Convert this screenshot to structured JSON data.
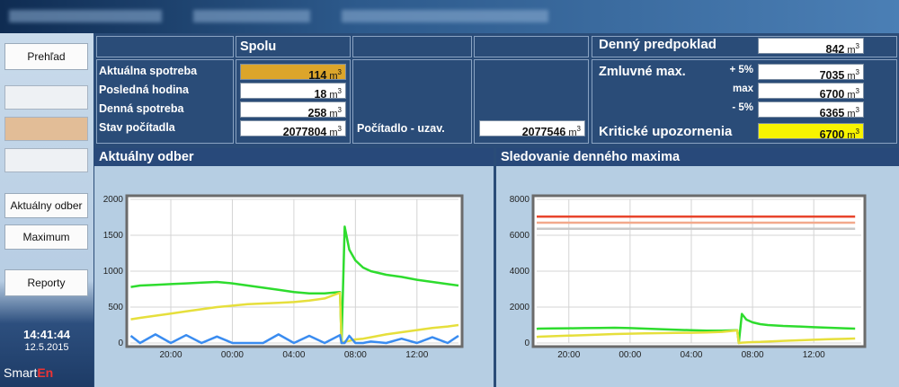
{
  "sidebar": {
    "buttons": [
      "Prehľad",
      "Aktuálny odber",
      "Maximum",
      "Reporty"
    ],
    "time": "14:41:44",
    "date": "12.5.2015",
    "logo": "Smart",
    "logo_accent": "En"
  },
  "summary": {
    "header": "Spolu",
    "unit": "m",
    "unit_exp": "3",
    "rows": [
      {
        "label": "Aktuálna spotreba",
        "value": 114
      },
      {
        "label": "Posledná hodina",
        "value": 18
      },
      {
        "label": "Denná spotreba",
        "value": 258
      },
      {
        "label": "Stav počítadla",
        "value": 2077804
      }
    ],
    "counter_closed": {
      "label": "Počítadlo - uzav.",
      "value": 2077546
    }
  },
  "forecast": {
    "label": "Denný predpoklad",
    "value": 842
  },
  "contract": {
    "label": "Zmluvné max.",
    "rows": [
      {
        "label": "+ 5%",
        "value": 7035
      },
      {
        "label": "max",
        "value": 6700
      },
      {
        "label": "- 5%",
        "value": 6365
      }
    ]
  },
  "critical": {
    "label": "Kritické upozornenia",
    "value": 6700
  },
  "chart_data": [
    {
      "type": "line",
      "title": "Aktuálny odber",
      "grid": true,
      "x": [
        17.4,
        18,
        19,
        20,
        21,
        22,
        23,
        24,
        25,
        26,
        27,
        28,
        29,
        30,
        31,
        31.1,
        31.3,
        31.6,
        32,
        32.5,
        33,
        34,
        35,
        36,
        37,
        38,
        38.7
      ],
      "xlim": [
        17.37,
        38.7
      ],
      "xticks": [
        {
          "value": 20,
          "label": "20:00"
        },
        {
          "value": 24,
          "label": "00:00"
        },
        {
          "value": 28,
          "label": "04:00"
        },
        {
          "value": 32,
          "label": "08:00"
        },
        {
          "value": 36,
          "label": "12:00"
        }
      ],
      "ylim": [
        0,
        2000
      ],
      "yticks": [
        0,
        500,
        1000,
        1500,
        2000
      ],
      "series": [
        {
          "color": "#2edc2e",
          "values": [
            780,
            800,
            810,
            820,
            830,
            840,
            850,
            830,
            800,
            770,
            740,
            710,
            690,
            690,
            710,
            0,
            1620,
            1300,
            1150,
            1050,
            1000,
            950,
            920,
            880,
            850,
            820,
            800
          ]
        },
        {
          "color": "#e6df3c",
          "values": [
            330,
            350,
            380,
            410,
            440,
            470,
            500,
            520,
            540,
            550,
            560,
            570,
            590,
            620,
            700,
            0,
            20,
            30,
            50,
            60,
            80,
            120,
            150,
            180,
            210,
            230,
            250
          ]
        },
        {
          "color": "#3a8cf0",
          "values": [
            100,
            0,
            120,
            0,
            110,
            0,
            90,
            0,
            0,
            0,
            120,
            0,
            100,
            0,
            110,
            0,
            0,
            100,
            0,
            0,
            20,
            0,
            60,
            0,
            80,
            0,
            100
          ]
        }
      ]
    },
    {
      "type": "line",
      "title": "Sledovanie denného maxima",
      "grid": true,
      "x": [
        17.9,
        18,
        19,
        20,
        21,
        22,
        23,
        24,
        25,
        26,
        27,
        28,
        29,
        30,
        31,
        31.1,
        31.3,
        31.6,
        32,
        32.5,
        33,
        34,
        35,
        36,
        37,
        38,
        38.7
      ],
      "xlim": [
        17.9,
        39.1
      ],
      "xticks": [
        {
          "value": 20,
          "label": "20:00"
        },
        {
          "value": 24,
          "label": "00:00"
        },
        {
          "value": 28,
          "label": "04:00"
        },
        {
          "value": 32,
          "label": "08:00"
        },
        {
          "value": 36,
          "label": "12:00"
        }
      ],
      "ylim": [
        0,
        8000
      ],
      "yticks": [
        0,
        2000,
        4000,
        6000,
        8000
      ],
      "series": [
        {
          "color": "#c8c8c8",
          "values": [
            6365,
            6365,
            6365,
            6365,
            6365,
            6365,
            6365,
            6365,
            6365,
            6365,
            6365,
            6365,
            6365,
            6365,
            6365,
            6365,
            6365,
            6365,
            6365,
            6365,
            6365,
            6365,
            6365,
            6365,
            6365,
            6365,
            6365
          ]
        },
        {
          "color": "#f3a98c",
          "values": [
            6700,
            6700,
            6700,
            6700,
            6700,
            6700,
            6700,
            6700,
            6700,
            6700,
            6700,
            6700,
            6700,
            6700,
            6700,
            6700,
            6700,
            6700,
            6700,
            6700,
            6700,
            6700,
            6700,
            6700,
            6700,
            6700,
            6700
          ]
        },
        {
          "color": "#e8452c",
          "values": [
            7035,
            7035,
            7035,
            7035,
            7035,
            7035,
            7035,
            7035,
            7035,
            7035,
            7035,
            7035,
            7035,
            7035,
            7035,
            7035,
            7035,
            7035,
            7035,
            7035,
            7035,
            7035,
            7035,
            7035,
            7035,
            7035,
            7035
          ]
        },
        {
          "color": "#2edc2e",
          "values": [
            780,
            800,
            810,
            820,
            830,
            840,
            850,
            830,
            800,
            770,
            740,
            710,
            690,
            690,
            710,
            0,
            1620,
            1300,
            1150,
            1050,
            1000,
            950,
            920,
            880,
            850,
            820,
            800
          ]
        },
        {
          "color": "#e6df3c",
          "values": [
            330,
            350,
            380,
            410,
            440,
            470,
            500,
            520,
            540,
            550,
            560,
            570,
            590,
            620,
            700,
            0,
            20,
            30,
            50,
            60,
            80,
            120,
            150,
            180,
            210,
            230,
            250
          ]
        }
      ]
    }
  ]
}
